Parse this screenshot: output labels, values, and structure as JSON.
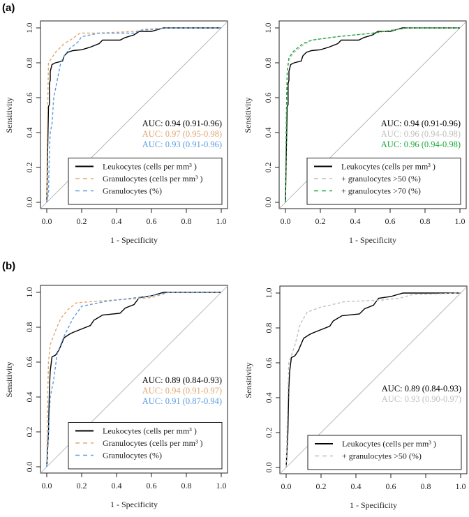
{
  "chart_data": [
    {
      "type": "line",
      "group_label": "(a)",
      "xlabel": "1 - Specificity",
      "ylabel": "Sensitivity",
      "xlim": [
        0,
        1
      ],
      "ylim": [
        0,
        1
      ],
      "ticks": [
        "0.0",
        "0.2",
        "0.4",
        "0.6",
        "0.8",
        "1.0"
      ],
      "auc": [
        {
          "text": "AUC: 0.94 (0.91-0.96)",
          "color": "#000000"
        },
        {
          "text": "AUC: 0.97 (0.95-0.98)",
          "color": "#e0a870"
        },
        {
          "text": "AUC: 0.93 (0.91-0.96)",
          "color": "#5b9be0"
        }
      ],
      "series": [
        {
          "name": "Leukocytes (cells per mm³ )",
          "color": "#000000",
          "dash": false,
          "points": [
            [
              0,
              0
            ],
            [
              0.005,
              0.3
            ],
            [
              0.01,
              0.55
            ],
            [
              0.015,
              0.56
            ],
            [
              0.015,
              0.68
            ],
            [
              0.02,
              0.7
            ],
            [
              0.02,
              0.75
            ],
            [
              0.03,
              0.79
            ],
            [
              0.05,
              0.8
            ],
            [
              0.09,
              0.81
            ],
            [
              0.1,
              0.84
            ],
            [
              0.12,
              0.86
            ],
            [
              0.15,
              0.87
            ],
            [
              0.2,
              0.875
            ],
            [
              0.25,
              0.89
            ],
            [
              0.3,
              0.91
            ],
            [
              0.32,
              0.93
            ],
            [
              0.42,
              0.93
            ],
            [
              0.45,
              0.945
            ],
            [
              0.5,
              0.96
            ],
            [
              0.53,
              0.98
            ],
            [
              0.6,
              0.98
            ],
            [
              0.67,
              1
            ],
            [
              1,
              1
            ]
          ]
        },
        {
          "name": "Granulocytes (cells per mm³ )",
          "color": "#e0a870",
          "dash": true,
          "points": [
            [
              0,
              0
            ],
            [
              0.003,
              0.4
            ],
            [
              0.008,
              0.7
            ],
            [
              0.01,
              0.8
            ],
            [
              0.03,
              0.83
            ],
            [
              0.05,
              0.86
            ],
            [
              0.1,
              0.91
            ],
            [
              0.15,
              0.94
            ],
            [
              0.19,
              0.97
            ],
            [
              0.3,
              0.97
            ],
            [
              0.5,
              0.98
            ],
            [
              0.6,
              0.99
            ],
            [
              0.7,
              1
            ],
            [
              1,
              1
            ]
          ]
        },
        {
          "name": "Granulocytes (%)",
          "color": "#5b9be0",
          "dash": true,
          "points": [
            [
              0,
              0
            ],
            [
              0.01,
              0.05
            ],
            [
              0.015,
              0.3
            ],
            [
              0.02,
              0.4
            ],
            [
              0.03,
              0.45
            ],
            [
              0.04,
              0.6
            ],
            [
              0.06,
              0.7
            ],
            [
              0.08,
              0.8
            ],
            [
              0.1,
              0.84
            ],
            [
              0.13,
              0.88
            ],
            [
              0.18,
              0.92
            ],
            [
              0.2,
              0.95
            ],
            [
              0.3,
              0.97
            ],
            [
              0.5,
              0.97
            ],
            [
              0.55,
              0.99
            ],
            [
              0.7,
              1
            ],
            [
              1,
              1
            ]
          ]
        }
      ]
    },
    {
      "type": "line",
      "group_label": "",
      "xlabel": "1 - Specificity",
      "ylabel": "Sensitivity",
      "xlim": [
        0,
        1
      ],
      "ylim": [
        0,
        1
      ],
      "ticks": [
        "0.0",
        "0.2",
        "0.4",
        "0.6",
        "0.8",
        "1.0"
      ],
      "auc": [
        {
          "text": "AUC: 0.94 (0.91-0.96)",
          "color": "#000000"
        },
        {
          "text": "AUC: 0.96 (0.94-0.98)",
          "color": "#c0c0c0"
        },
        {
          "text": "AUC: 0.96 (0.94-0.98)",
          "color": "#1aaa3a"
        }
      ],
      "series": [
        {
          "name": "Leukocytes (cells per mm³ )",
          "color": "#000000",
          "dash": false,
          "points": [
            [
              0,
              0
            ],
            [
              0.005,
              0.3
            ],
            [
              0.01,
              0.55
            ],
            [
              0.015,
              0.56
            ],
            [
              0.015,
              0.68
            ],
            [
              0.02,
              0.7
            ],
            [
              0.02,
              0.75
            ],
            [
              0.03,
              0.79
            ],
            [
              0.05,
              0.8
            ],
            [
              0.09,
              0.81
            ],
            [
              0.1,
              0.84
            ],
            [
              0.12,
              0.86
            ],
            [
              0.15,
              0.87
            ],
            [
              0.2,
              0.875
            ],
            [
              0.25,
              0.89
            ],
            [
              0.3,
              0.91
            ],
            [
              0.32,
              0.93
            ],
            [
              0.42,
              0.93
            ],
            [
              0.45,
              0.945
            ],
            [
              0.5,
              0.96
            ],
            [
              0.53,
              0.98
            ],
            [
              0.6,
              0.98
            ],
            [
              0.67,
              1
            ],
            [
              1,
              1
            ]
          ]
        },
        {
          "name": "+ granulocytes >50 (%)",
          "color": "#c0c0c0",
          "dash": true,
          "points": [
            [
              0,
              0
            ],
            [
              0.005,
              0.5
            ],
            [
              0.01,
              0.74
            ],
            [
              0.02,
              0.82
            ],
            [
              0.05,
              0.86
            ],
            [
              0.1,
              0.9
            ],
            [
              0.15,
              0.93
            ],
            [
              0.3,
              0.95
            ],
            [
              0.5,
              0.97
            ],
            [
              0.7,
              1
            ],
            [
              1,
              1
            ]
          ]
        },
        {
          "name": "+ granulocytes >70 (%)",
          "color": "#1aaa3a",
          "dash": true,
          "points": [
            [
              0,
              0
            ],
            [
              0.005,
              0.5
            ],
            [
              0.01,
              0.75
            ],
            [
              0.02,
              0.83
            ],
            [
              0.05,
              0.87
            ],
            [
              0.1,
              0.91
            ],
            [
              0.15,
              0.93
            ],
            [
              0.3,
              0.95
            ],
            [
              0.5,
              0.97
            ],
            [
              0.7,
              1
            ],
            [
              1,
              1
            ]
          ]
        }
      ]
    },
    {
      "type": "line",
      "group_label": "(b)",
      "xlabel": "1 - Specificity",
      "ylabel": "Sensitivity",
      "xlim": [
        0,
        1
      ],
      "ylim": [
        0,
        1
      ],
      "ticks": [
        "0.0",
        "0.2",
        "0.4",
        "0.6",
        "0.8",
        "1.0"
      ],
      "auc": [
        {
          "text": "AUC: 0.89 (0.84-0.93)",
          "color": "#000000"
        },
        {
          "text": "AUC: 0.94 (0.91-0.97)",
          "color": "#e0a870"
        },
        {
          "text": "AUC: 0.91 (0.87-0.94)",
          "color": "#5b9be0"
        }
      ],
      "series": [
        {
          "name": "Leukocytes (cells per mm³ )",
          "color": "#000000",
          "dash": false,
          "points": [
            [
              0,
              0
            ],
            [
              0.01,
              0.2
            ],
            [
              0.015,
              0.45
            ],
            [
              0.02,
              0.55
            ],
            [
              0.03,
              0.63
            ],
            [
              0.05,
              0.64
            ],
            [
              0.07,
              0.67
            ],
            [
              0.1,
              0.74
            ],
            [
              0.13,
              0.76
            ],
            [
              0.15,
              0.77
            ],
            [
              0.2,
              0.79
            ],
            [
              0.25,
              0.81
            ],
            [
              0.27,
              0.84
            ],
            [
              0.32,
              0.87
            ],
            [
              0.42,
              0.88
            ],
            [
              0.45,
              0.91
            ],
            [
              0.5,
              0.93
            ],
            [
              0.53,
              0.97
            ],
            [
              0.6,
              0.98
            ],
            [
              0.67,
              1
            ],
            [
              1,
              1
            ]
          ]
        },
        {
          "name": "Granulocytes (cells per mm³ )",
          "color": "#e0a870",
          "dash": true,
          "points": [
            [
              0,
              0
            ],
            [
              0.005,
              0.4
            ],
            [
              0.01,
              0.6
            ],
            [
              0.02,
              0.7
            ],
            [
              0.05,
              0.78
            ],
            [
              0.08,
              0.85
            ],
            [
              0.12,
              0.9
            ],
            [
              0.17,
              0.94
            ],
            [
              0.3,
              0.95
            ],
            [
              0.6,
              0.97
            ],
            [
              0.7,
              1
            ],
            [
              1,
              1
            ]
          ]
        },
        {
          "name": "Granulocytes (%)",
          "color": "#5b9be0",
          "dash": true,
          "points": [
            [
              0,
              0
            ],
            [
              0.01,
              0.2
            ],
            [
              0.02,
              0.4
            ],
            [
              0.04,
              0.5
            ],
            [
              0.06,
              0.65
            ],
            [
              0.1,
              0.75
            ],
            [
              0.15,
              0.85
            ],
            [
              0.2,
              0.92
            ],
            [
              0.35,
              0.95
            ],
            [
              0.6,
              0.98
            ],
            [
              0.7,
              1
            ],
            [
              1,
              1
            ]
          ]
        }
      ]
    },
    {
      "type": "line",
      "group_label": "",
      "xlabel": "1 - Specificity",
      "ylabel": "Sensitivity",
      "xlim": [
        0,
        1
      ],
      "ylim": [
        0,
        1
      ],
      "ticks": [
        "0.0",
        "0.2",
        "0.4",
        "0.6",
        "0.8",
        "1.0"
      ],
      "auc": [
        {
          "text": "AUC: 0.89 (0.84-0.93)",
          "color": "#000000"
        },
        {
          "text": "AUC: 0.93 (0.90-0.97)",
          "color": "#c0c0c0"
        }
      ],
      "series": [
        {
          "name": "Leukocytes (cells per mm³ )",
          "color": "#000000",
          "dash": false,
          "points": [
            [
              0,
              0
            ],
            [
              0.01,
              0.2
            ],
            [
              0.015,
              0.45
            ],
            [
              0.02,
              0.55
            ],
            [
              0.03,
              0.63
            ],
            [
              0.05,
              0.64
            ],
            [
              0.07,
              0.67
            ],
            [
              0.1,
              0.74
            ],
            [
              0.13,
              0.76
            ],
            [
              0.15,
              0.77
            ],
            [
              0.2,
              0.79
            ],
            [
              0.25,
              0.81
            ],
            [
              0.27,
              0.84
            ],
            [
              0.32,
              0.87
            ],
            [
              0.42,
              0.88
            ],
            [
              0.45,
              0.91
            ],
            [
              0.5,
              0.93
            ],
            [
              0.53,
              0.97
            ],
            [
              0.6,
              0.98
            ],
            [
              0.67,
              1
            ],
            [
              1,
              1
            ]
          ]
        },
        {
          "name": "+ granulocytes >50 (%)",
          "color": "#c0c0c0",
          "dash": true,
          "points": [
            [
              0,
              0
            ],
            [
              0.01,
              0.4
            ],
            [
              0.015,
              0.6
            ],
            [
              0.05,
              0.7
            ],
            [
              0.08,
              0.82
            ],
            [
              0.12,
              0.89
            ],
            [
              0.2,
              0.92
            ],
            [
              0.25,
              0.93
            ],
            [
              0.33,
              0.95
            ],
            [
              0.55,
              0.96
            ],
            [
              0.65,
              0.97
            ],
            [
              0.72,
              0.99
            ],
            [
              1,
              1
            ]
          ]
        }
      ]
    }
  ]
}
